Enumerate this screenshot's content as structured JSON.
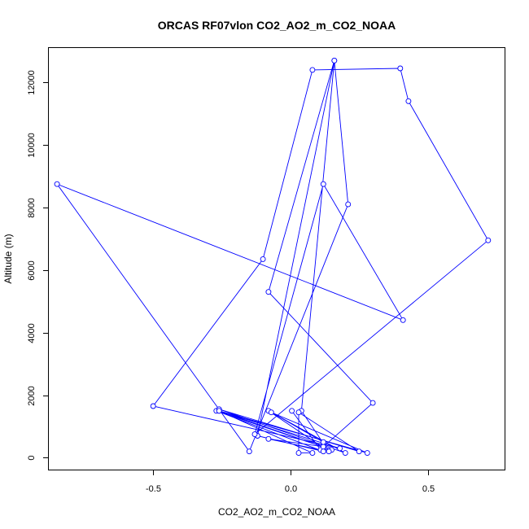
{
  "chart_data": {
    "type": "scatter",
    "title": "ORCAS RF07vlon CO2_AO2_m_CO2_NOAA",
    "xlabel": "CO2_AO2_m_CO2_NOAA",
    "ylabel": "Altitude (m)",
    "xlim": [
      -0.88,
      0.78
    ],
    "ylim": [
      -380,
      13100
    ],
    "x_ticks": [
      -0.5,
      0.0,
      0.5
    ],
    "x_tick_labels": [
      "-0.5",
      "0.0",
      "0.5"
    ],
    "y_ticks": [
      0,
      2000,
      4000,
      6000,
      8000,
      10000,
      12000
    ],
    "y_tick_labels": [
      "0",
      "2000",
      "4000",
      "6000",
      "8000",
      "10000",
      "12000"
    ],
    "grid": false,
    "series_color": "#0000ff",
    "series": [
      {
        "mode": "lines+markers",
        "points": [
          [
            0.005,
            1500
          ],
          [
            0.11,
            250
          ],
          [
            -0.08,
            600
          ],
          [
            0.12,
            350
          ],
          [
            0.3,
            1750
          ],
          [
            -0.08,
            5300
          ],
          [
            0.16,
            12700
          ],
          [
            -0.12,
            700
          ],
          [
            0.12,
            200
          ],
          [
            -0.27,
            1500
          ],
          [
            0.15,
            250
          ],
          [
            -0.26,
            1500
          ],
          [
            0.18,
            300
          ],
          [
            -0.5,
            1650
          ],
          [
            -0.1,
            6350
          ],
          [
            0.08,
            12400
          ],
          [
            0.4,
            12450
          ],
          [
            0.43,
            11400
          ],
          [
            0.72,
            6950
          ],
          [
            -0.13,
            750
          ],
          [
            0.12,
            8750
          ],
          [
            0.41,
            4400
          ],
          [
            -0.85,
            8750
          ],
          [
            -0.15,
            200
          ],
          [
            0.21,
            8100
          ],
          [
            0.16,
            12700
          ],
          [
            0.04,
            1500
          ],
          [
            0.14,
            200
          ],
          [
            -0.08,
            1500
          ],
          [
            0.2,
            150
          ],
          [
            -0.26,
            1550
          ],
          [
            0.25,
            200
          ],
          [
            0.03,
            1450
          ],
          [
            0.03,
            150
          ],
          [
            0.08,
            150
          ],
          [
            -0.26,
            1500
          ],
          [
            0.28,
            150
          ],
          [
            -0.07,
            1450
          ],
          [
            0.12,
            500
          ]
        ]
      }
    ]
  }
}
